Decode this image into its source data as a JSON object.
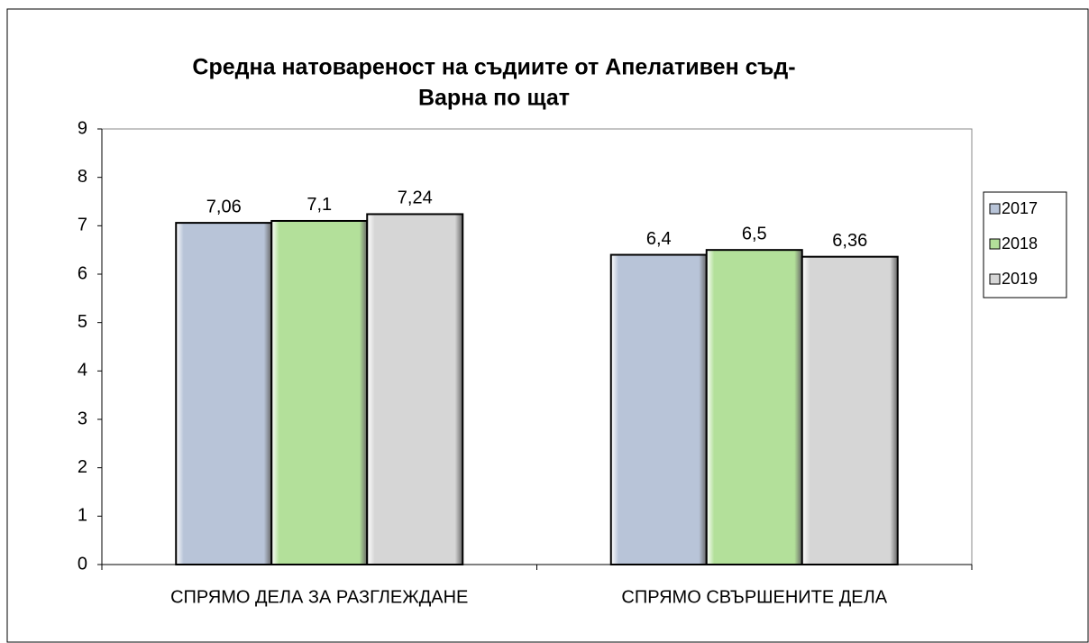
{
  "chart_data": {
    "type": "bar",
    "title": [
      "Средна натовареност на съдиите от Апелативен съд-",
      "Варна по щат"
    ],
    "categories": [
      "СПРЯМО ДЕЛА ЗА РАЗГЛЕЖДАНЕ",
      "СПРЯМО СВЪРШЕНИТЕ ДЕЛА"
    ],
    "series": [
      {
        "name": "2017",
        "color": "#b8c4d8",
        "values": [
          7.06,
          6.4
        ],
        "value_labels": [
          "7,06",
          "6,4"
        ]
      },
      {
        "name": "2018",
        "color": "#b3e09a",
        "values": [
          7.1,
          6.5
        ],
        "value_labels": [
          "7,1",
          "6,5"
        ]
      },
      {
        "name": "2019",
        "color": "#d6d6d6",
        "values": [
          7.24,
          6.36
        ],
        "value_labels": [
          "7,24",
          "6,36"
        ]
      }
    ],
    "ylim": [
      0,
      9
    ],
    "yticks": [
      0,
      1,
      2,
      3,
      4,
      5,
      6,
      7,
      8,
      9
    ],
    "grid": false,
    "legend": "right"
  }
}
